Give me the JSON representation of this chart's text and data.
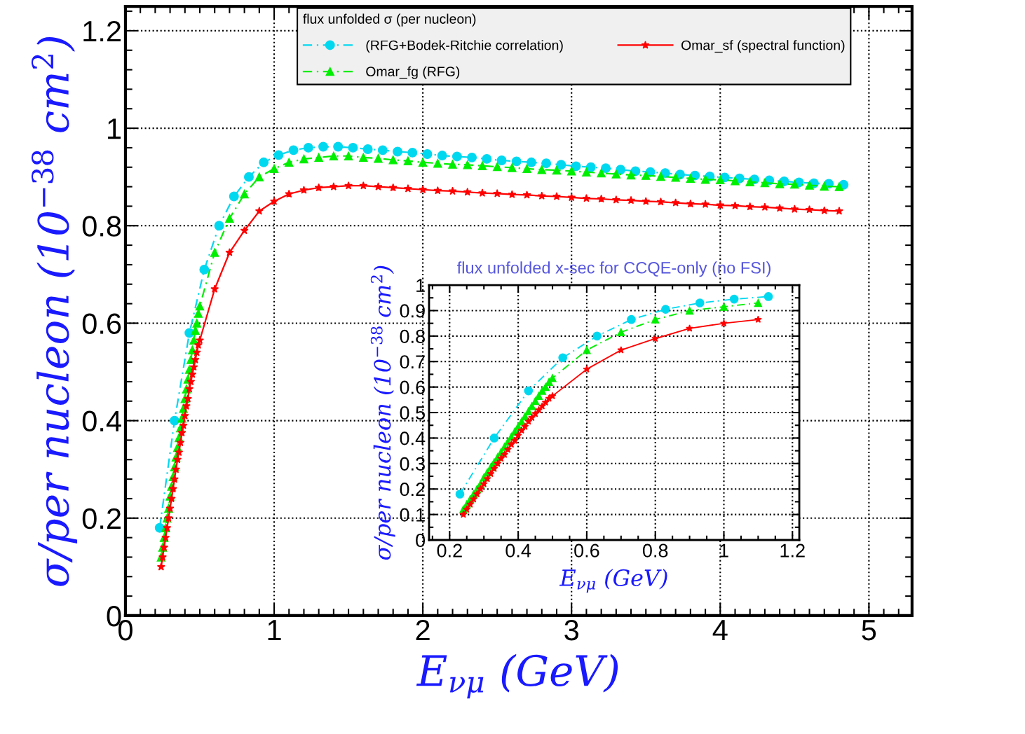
{
  "chart_data": [
    {
      "type": "line",
      "xlabel": "E$_{νμ}$ (GeV)",
      "ylabel": "σ/per nucleon (10$^{−38}$ cm$^{2}$)",
      "legend_title": "flux unfolded σ (per nucleon)",
      "legend": "top",
      "grid": true,
      "xlim": [
        0,
        5.29
      ],
      "ylim": [
        0,
        1.25
      ],
      "xticks": [
        0,
        1,
        2,
        3,
        4,
        5
      ],
      "yticks": [
        0,
        0.2,
        0.4,
        0.6,
        0.8,
        1,
        1.2
      ],
      "series": [
        {
          "name": "(RFG+Bodek-Ritchie correlation)",
          "color": "#00d8f0",
          "marker": "circle",
          "line_style": "dashed",
          "x": [
            0.23,
            0.33,
            0.43,
            0.53,
            0.63,
            0.73,
            0.83,
            0.93,
            1.03,
            1.13,
            1.23,
            1.33,
            1.43,
            1.53,
            1.63,
            1.73,
            1.83,
            1.93,
            2.03,
            2.13,
            2.23,
            2.33,
            2.43,
            2.53,
            2.63,
            2.73,
            2.83,
            2.93,
            3.03,
            3.13,
            3.23,
            3.33,
            3.43,
            3.53,
            3.63,
            3.73,
            3.83,
            3.93,
            4.03,
            4.13,
            4.23,
            4.33,
            4.43,
            4.53,
            4.63,
            4.73,
            4.83
          ],
          "values": [
            0.18,
            0.4,
            0.58,
            0.71,
            0.8,
            0.86,
            0.9,
            0.93,
            0.945,
            0.955,
            0.96,
            0.962,
            0.962,
            0.96,
            0.957,
            0.955,
            0.952,
            0.95,
            0.947,
            0.944,
            0.942,
            0.94,
            0.937,
            0.934,
            0.932,
            0.93,
            0.928,
            0.925,
            0.922,
            0.92,
            0.918,
            0.915,
            0.912,
            0.91,
            0.908,
            0.905,
            0.903,
            0.901,
            0.899,
            0.897,
            0.895,
            0.893,
            0.891,
            0.889,
            0.887,
            0.886,
            0.884
          ]
        },
        {
          "name": "Omar_fg (RFG)",
          "color": "#00ee00",
          "marker": "triangle",
          "line_style": "dashed",
          "x": [
            0.24,
            0.25,
            0.26,
            0.27,
            0.28,
            0.29,
            0.3,
            0.31,
            0.32,
            0.33,
            0.34,
            0.35,
            0.36,
            0.37,
            0.38,
            0.39,
            0.4,
            0.41,
            0.42,
            0.43,
            0.44,
            0.45,
            0.46,
            0.47,
            0.48,
            0.49,
            0.5,
            0.6,
            0.7,
            0.8,
            0.9,
            1.0,
            1.1,
            1.2,
            1.3,
            1.4,
            1.5,
            1.6,
            1.7,
            1.8,
            1.9,
            2.0,
            2.1,
            2.2,
            2.3,
            2.4,
            2.5,
            2.6,
            2.7,
            2.8,
            2.9,
            3.0,
            3.1,
            3.2,
            3.3,
            3.4,
            3.5,
            3.6,
            3.7,
            3.8,
            3.9,
            4.0,
            4.1,
            4.2,
            4.3,
            4.4,
            4.5,
            4.6,
            4.7,
            4.8
          ],
          "values": [
            0.12,
            0.14,
            0.16,
            0.18,
            0.2,
            0.22,
            0.245,
            0.265,
            0.285,
            0.305,
            0.325,
            0.345,
            0.365,
            0.385,
            0.405,
            0.425,
            0.445,
            0.465,
            0.485,
            0.505,
            0.525,
            0.545,
            0.565,
            0.585,
            0.6,
            0.62,
            0.635,
            0.745,
            0.815,
            0.865,
            0.9,
            0.917,
            0.93,
            0.937,
            0.94,
            0.943,
            0.943,
            0.94,
            0.938,
            0.935,
            0.933,
            0.93,
            0.928,
            0.926,
            0.925,
            0.923,
            0.921,
            0.919,
            0.917,
            0.915,
            0.914,
            0.912,
            0.91,
            0.908,
            0.906,
            0.904,
            0.903,
            0.901,
            0.899,
            0.897,
            0.895,
            0.894,
            0.892,
            0.89,
            0.888,
            0.886,
            0.885,
            0.883,
            0.881,
            0.88
          ]
        },
        {
          "name": "Omar_sf (spectral function)",
          "color": "#ff0000",
          "marker": "star",
          "line_style": "solid",
          "x": [
            0.24,
            0.25,
            0.26,
            0.27,
            0.28,
            0.29,
            0.3,
            0.31,
            0.32,
            0.33,
            0.34,
            0.35,
            0.36,
            0.37,
            0.38,
            0.39,
            0.4,
            0.41,
            0.42,
            0.43,
            0.44,
            0.45,
            0.46,
            0.47,
            0.48,
            0.49,
            0.5,
            0.6,
            0.7,
            0.8,
            0.9,
            1.0,
            1.1,
            1.2,
            1.3,
            1.4,
            1.5,
            1.6,
            1.7,
            1.8,
            1.9,
            2.0,
            2.1,
            2.2,
            2.3,
            2.4,
            2.5,
            2.6,
            2.7,
            2.8,
            2.9,
            3.0,
            3.1,
            3.2,
            3.3,
            3.4,
            3.5,
            3.6,
            3.7,
            3.8,
            3.9,
            4.0,
            4.1,
            4.2,
            4.3,
            4.4,
            4.5,
            4.6,
            4.7,
            4.8
          ],
          "values": [
            0.1,
            0.12,
            0.14,
            0.16,
            0.18,
            0.2,
            0.22,
            0.24,
            0.26,
            0.28,
            0.3,
            0.32,
            0.335,
            0.355,
            0.375,
            0.39,
            0.41,
            0.43,
            0.445,
            0.465,
            0.48,
            0.495,
            0.51,
            0.525,
            0.54,
            0.555,
            0.565,
            0.67,
            0.745,
            0.79,
            0.83,
            0.85,
            0.865,
            0.873,
            0.878,
            0.88,
            0.882,
            0.882,
            0.88,
            0.878,
            0.876,
            0.874,
            0.872,
            0.871,
            0.869,
            0.867,
            0.866,
            0.864,
            0.863,
            0.861,
            0.86,
            0.858,
            0.856,
            0.855,
            0.853,
            0.852,
            0.85,
            0.849,
            0.847,
            0.845,
            0.844,
            0.842,
            0.841,
            0.839,
            0.838,
            0.836,
            0.834,
            0.833,
            0.831,
            0.83
          ]
        }
      ]
    },
    {
      "type": "line",
      "title": "flux unfolded x-sec for CCQE-only (no FSI)",
      "xlabel": "E$_{νμ}$ (GeV)",
      "ylabel": "σ/per nucleon (10$^{−38}$ cm$^{2}$)",
      "grid": true,
      "xlim": [
        0.14,
        1.22
      ],
      "ylim": [
        0,
        1
      ],
      "xticks": [
        0.2,
        0.4,
        0.6,
        0.8,
        1,
        1.2
      ],
      "yticks": [
        0,
        0.1,
        0.2,
        0.3,
        0.4,
        0.5,
        0.6,
        0.7,
        0.8,
        0.9,
        1
      ],
      "series": [
        {
          "color": "#00d8f0",
          "marker": "circle",
          "line_style": "dashed",
          "x": [
            0.23,
            0.33,
            0.43,
            0.53,
            0.63,
            0.73,
            0.83,
            0.93,
            1.03,
            1.13
          ],
          "values": [
            0.18,
            0.4,
            0.585,
            0.715,
            0.8,
            0.865,
            0.905,
            0.93,
            0.945,
            0.955
          ]
        },
        {
          "color": "#00ee00",
          "marker": "triangle",
          "line_style": "dashed",
          "x": [
            0.24,
            0.25,
            0.26,
            0.27,
            0.28,
            0.29,
            0.3,
            0.31,
            0.32,
            0.33,
            0.34,
            0.35,
            0.36,
            0.37,
            0.38,
            0.39,
            0.4,
            0.41,
            0.42,
            0.43,
            0.44,
            0.45,
            0.46,
            0.47,
            0.48,
            0.49,
            0.5,
            0.6,
            0.7,
            0.8,
            0.9,
            1.0,
            1.1
          ],
          "values": [
            0.12,
            0.14,
            0.16,
            0.18,
            0.2,
            0.22,
            0.245,
            0.265,
            0.285,
            0.305,
            0.325,
            0.345,
            0.365,
            0.385,
            0.405,
            0.425,
            0.445,
            0.465,
            0.485,
            0.505,
            0.525,
            0.545,
            0.565,
            0.585,
            0.6,
            0.62,
            0.635,
            0.745,
            0.815,
            0.865,
            0.9,
            0.915,
            0.93
          ]
        },
        {
          "color": "#ff0000",
          "marker": "star",
          "line_style": "solid",
          "x": [
            0.24,
            0.25,
            0.26,
            0.27,
            0.28,
            0.29,
            0.3,
            0.31,
            0.32,
            0.33,
            0.34,
            0.35,
            0.36,
            0.37,
            0.38,
            0.39,
            0.4,
            0.41,
            0.42,
            0.43,
            0.44,
            0.45,
            0.46,
            0.47,
            0.48,
            0.49,
            0.5,
            0.6,
            0.7,
            0.8,
            0.9,
            1.0,
            1.1
          ],
          "values": [
            0.1,
            0.12,
            0.14,
            0.16,
            0.18,
            0.2,
            0.22,
            0.24,
            0.26,
            0.28,
            0.3,
            0.32,
            0.335,
            0.355,
            0.375,
            0.39,
            0.41,
            0.43,
            0.445,
            0.465,
            0.48,
            0.495,
            0.51,
            0.525,
            0.54,
            0.555,
            0.565,
            0.67,
            0.745,
            0.79,
            0.83,
            0.85,
            0.865
          ]
        }
      ]
    }
  ]
}
